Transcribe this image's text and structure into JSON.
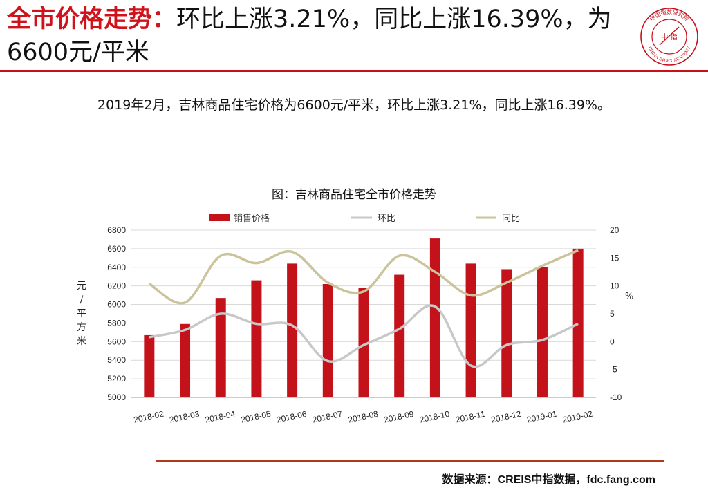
{
  "header": {
    "title_prefix": "全市价格走势：",
    "title_body": "环比上涨3.21%，同比上涨16.39%，为6600元/平米"
  },
  "logo": {
    "outer_text": "中国指数研究院",
    "inner_text": "中 指",
    "english_text": "CHINA INDEX ACADEMY"
  },
  "summary": "2019年2月，吉林商品住宅价格为6600元/平米，环比上涨3.21%，同比上涨16.39%。",
  "source": "数据来源：CREIS中指数据，fdc.fang.com",
  "colors": {
    "accent": "#d0121b",
    "bar": "#c4121b",
    "mom_line": "#c8c8c8",
    "yoy_line": "#cbc49a",
    "footer_rule": "#b13a1e"
  },
  "chart_data": {
    "type": "bar+line",
    "title": "图：吉林商品住宅全市价格走势",
    "categories": [
      "2018-02",
      "2018-03",
      "2018-04",
      "2018-05",
      "2018-06",
      "2018-07",
      "2018-08",
      "2018-09",
      "2018-10",
      "2018-11",
      "2018-12",
      "2019-01",
      "2019-02"
    ],
    "series": [
      {
        "name": "销售价格",
        "kind": "bar",
        "axis": "left",
        "values": [
          5670,
          5790,
          6070,
          6260,
          6440,
          6220,
          6180,
          6320,
          6710,
          6440,
          6380,
          6400,
          6600
        ]
      },
      {
        "name": "环比",
        "kind": "line",
        "axis": "right",
        "values": [
          0.8,
          2.1,
          5.0,
          3.2,
          2.9,
          -3.5,
          -0.6,
          2.3,
          6.3,
          -4.3,
          -0.6,
          0.3,
          3.21
        ]
      },
      {
        "name": "同比",
        "kind": "line",
        "axis": "right",
        "values": [
          10.4,
          7.0,
          15.4,
          14.1,
          16.1,
          10.6,
          9.0,
          15.4,
          12.5,
          8.3,
          10.6,
          13.6,
          16.39
        ]
      }
    ],
    "y_left": {
      "label": "元/平方米",
      "ylim": [
        5000,
        6800
      ],
      "ticks": [
        5000,
        5200,
        5400,
        5600,
        5800,
        6000,
        6200,
        6400,
        6600,
        6800
      ]
    },
    "y_right": {
      "label": "%",
      "ylim": [
        -10,
        20
      ],
      "ticks": [
        -10,
        -5,
        0,
        5,
        10,
        15,
        20
      ]
    },
    "legend_position": "top",
    "grid": true
  }
}
